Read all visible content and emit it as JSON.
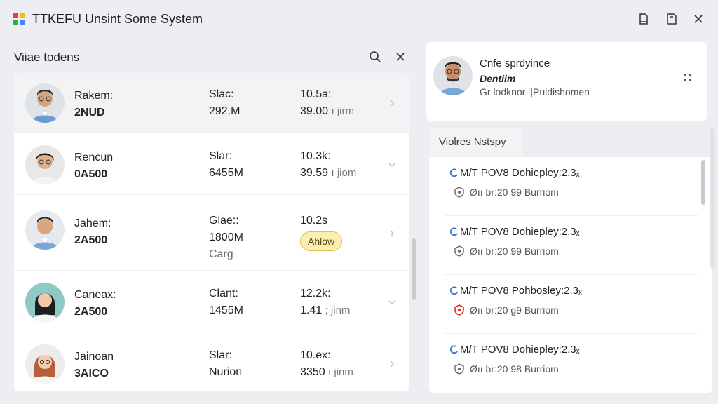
{
  "window": {
    "title": "TTKEFU Unsint Some System",
    "logo_colors": [
      "#e94235",
      "#fbbc04",
      "#34a853",
      "#4285f4"
    ]
  },
  "left": {
    "title": "Viiae todens",
    "rows": [
      {
        "name": "Rakem:",
        "code": "2NUD",
        "col2a": "Slac:",
        "col2b": "292.M",
        "col3a": "10.5a:",
        "col3b": "39.00",
        "col3b_unit": "ı jirm",
        "chev": "right"
      },
      {
        "name": "Rencun",
        "code": "0A500",
        "col2a": "Slar:",
        "col2b": "6455M",
        "col3a": "10.3k:",
        "col3b": "39.59",
        "col3b_unit": "ı jiom",
        "chev": "down"
      },
      {
        "name": "Jahem:",
        "code": "2A500",
        "col2a": "Glae::",
        "col2b": "1800M",
        "col2c": "Carg",
        "col3a": "10.2s",
        "badge": "Ahlow",
        "chev": "right"
      },
      {
        "name": "Caneax:",
        "code": "2A500",
        "col2a": "Clant:",
        "col2b": "1455M",
        "col3a": "12.2k:",
        "col3b": "1.41",
        "col3b_unit": "; jinm",
        "chev": "down"
      },
      {
        "name": "Jainoan",
        "code": "3AICO",
        "col2a": "Slar:",
        "col2b": "Nurion",
        "col3a": "10.ex:",
        "col3b": "3350",
        "col3b_unit": "ı jinm",
        "chev": "right"
      }
    ]
  },
  "right": {
    "profile": {
      "title": "Cnfe sprdyince",
      "subtitle": "Dentiim",
      "meta_a": "Gr lodknor",
      "meta_tick": "‘|",
      "meta_b": "Puldishomen"
    },
    "tab_label": "Violres Nstspy",
    "feed": [
      {
        "line1": "M/T POV8 Dohiepley:2.3ₓ",
        "line2": "Øıı br:20 99 Burriom",
        "shield_color": "#666"
      },
      {
        "line1": "M/T POV8 Dohiepley:2.3ₓ",
        "line2": "Øıı br:20 99 Burriom",
        "shield_color": "#666"
      },
      {
        "line1": "M/T POV8 Pohbosley:2.3ₓ",
        "line2": "Øıı br:20 g9 Burriom",
        "shield_color": "#d93025"
      },
      {
        "line1": "M/T POV8 Dohiepley:2.3ₓ",
        "line2": "Øıı br:20 98 Burriom",
        "shield_color": "#666"
      }
    ]
  }
}
